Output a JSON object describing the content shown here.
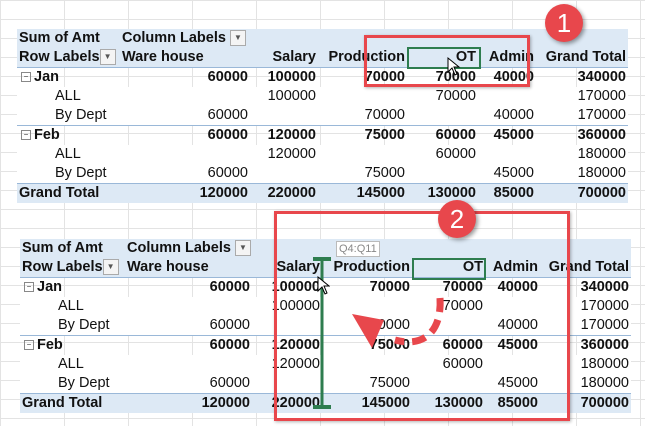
{
  "pivot": {
    "value_field": "Sum of Amt",
    "column_labels": "Column Labels",
    "row_labels": "Row Labels",
    "grand_total_label": "Grand Total",
    "rows": [
      {
        "label": "Jan",
        "type": "group",
        "values": [
          "60000",
          "100000",
          "70000",
          "70000",
          "40000",
          "340000"
        ]
      },
      {
        "label": "ALL",
        "type": "sub",
        "values": [
          "",
          "100000",
          "",
          "70000",
          "",
          "170000"
        ]
      },
      {
        "label": "By Dept",
        "type": "sub",
        "values": [
          "60000",
          "",
          "70000",
          "",
          "40000",
          "170000"
        ]
      },
      {
        "label": "Feb",
        "type": "group",
        "values": [
          "60000",
          "120000",
          "75000",
          "60000",
          "45000",
          "360000"
        ]
      },
      {
        "label": "ALL",
        "type": "sub",
        "values": [
          "",
          "120000",
          "",
          "60000",
          "",
          "180000"
        ]
      },
      {
        "label": "By Dept",
        "type": "sub",
        "values": [
          "60000",
          "",
          "75000",
          "",
          "45000",
          "180000"
        ]
      }
    ],
    "grand_total_values": [
      "120000",
      "220000",
      "145000",
      "130000",
      "85000",
      "700000"
    ]
  },
  "table_before": {
    "columns": [
      "Ware house",
      "Salary",
      "Production",
      "OT",
      "Admin",
      "Grand Total"
    ]
  },
  "table_after": {
    "columns": [
      "Ware house",
      "Salary",
      "Production",
      "OT",
      "Admin",
      "Grand Total"
    ]
  },
  "annotations": {
    "step1": "1",
    "step2": "2",
    "range_tooltip": "Q4:Q11"
  },
  "colors": {
    "annotation_red": "#e8474c",
    "selection_green": "#2e7d4f",
    "pivot_header_bg": "#dde9f5"
  }
}
